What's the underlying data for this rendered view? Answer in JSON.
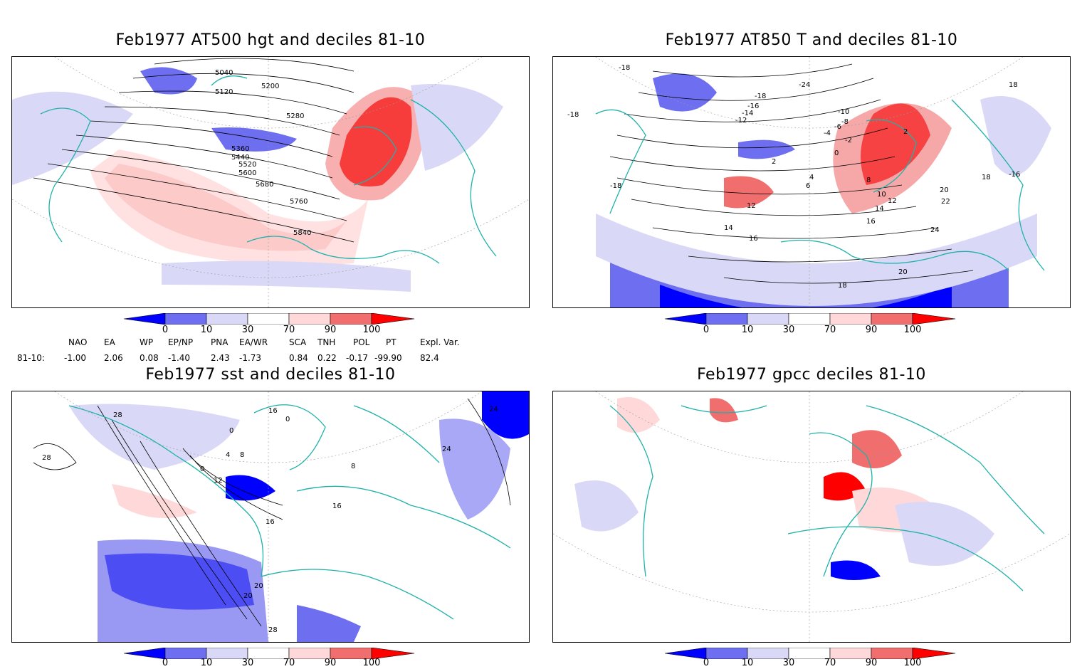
{
  "panels": [
    {
      "id": "at500",
      "title": "Feb1977 AT500 hgt and deciles 81-10",
      "contour_labels": [
        "5040",
        "5120",
        "5200",
        "5280",
        "5360",
        "5440",
        "5520",
        "5600",
        "5680",
        "5760",
        "5840",
        "5120",
        "5840"
      ]
    },
    {
      "id": "at850",
      "title": "Feb1977 AT850 T and deciles 81-10",
      "contour_labels": [
        "-24",
        "-18",
        "-16",
        "-14",
        "-12",
        "-10",
        "-8",
        "-6",
        "-4",
        "-2",
        "0",
        "2",
        "2",
        "4",
        "6",
        "8",
        "10",
        "12",
        "12",
        "14",
        "14",
        "16",
        "16",
        "18",
        "18",
        "20",
        "20",
        "22",
        "24",
        "-18",
        "-18",
        "-18",
        "-16",
        "18"
      ]
    },
    {
      "id": "sst",
      "title": "Feb1977 sst and deciles 81-10",
      "contour_labels": [
        "28",
        "28",
        "24",
        "20",
        "16",
        "12",
        "8",
        "4",
        "0",
        "0",
        "0",
        "8",
        "16",
        "16",
        "20",
        "24",
        "28"
      ]
    },
    {
      "id": "gpcc",
      "title": "Feb1977 gpcc deciles 81-10",
      "contour_labels": []
    }
  ],
  "colorbar": {
    "labels": [
      "0",
      "10",
      "30",
      "70",
      "90",
      "100"
    ],
    "colors": [
      "#0000ff",
      "#6e6ef0",
      "#d9d9f7",
      "#ffffff",
      "#ffd9d9",
      "#f06e6e",
      "#ff0000"
    ]
  },
  "indices": {
    "row_label": "81-10:",
    "names": [
      "NAO",
      "EA",
      "WP",
      "EP/NP",
      "PNA",
      "EA/WR",
      "SCA",
      "TNH",
      "POL",
      "PT",
      "Expl. Var."
    ],
    "values": [
      "-1.00",
      "2.06",
      "0.08",
      "-1.40",
      "2.43",
      "-1.73",
      "0.84",
      "0.22",
      "-0.17",
      "-99.90",
      "82.4"
    ]
  },
  "map_colors": {
    "coast": "#20b2aa",
    "contour": "#000000",
    "grid": "#9a9a9a"
  }
}
